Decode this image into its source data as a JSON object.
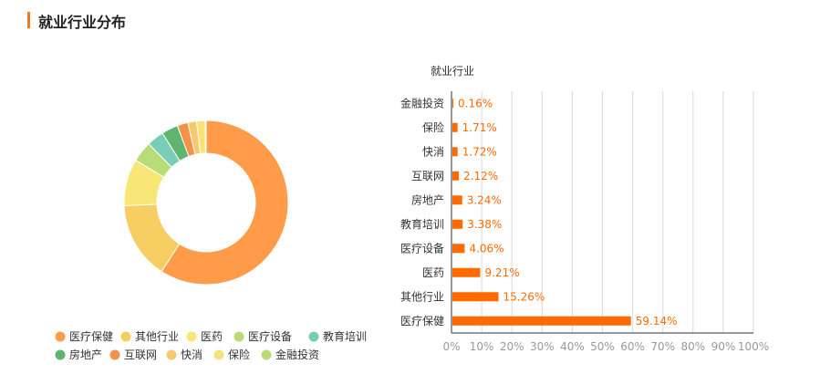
{
  "section": {
    "title": "就业行业分布"
  },
  "colors": {
    "accent": "#f07a1a",
    "bar": "#ff6a00",
    "pie": [
      "#ff9b49",
      "#f6ce62",
      "#f8e676",
      "#b9dc76",
      "#79cdb6",
      "#5fb46f",
      "#f39249",
      "#f6c86f",
      "#f7e37a",
      "#b9dc76"
    ]
  },
  "chart_data": [
    {
      "type": "pie",
      "donut": true,
      "legend_position": "bottom",
      "categories": [
        "医疗保健",
        "其他行业",
        "医药",
        "医疗设备",
        "教育培训",
        "房地产",
        "互联网",
        "快消",
        "保险",
        "金融投资"
      ],
      "values": [
        59.14,
        15.26,
        9.21,
        4.06,
        3.38,
        3.24,
        2.12,
        1.72,
        1.71,
        0.16
      ]
    },
    {
      "type": "bar",
      "orientation": "horizontal",
      "title": "就业行业",
      "categories": [
        "金融投资",
        "保险",
        "快消",
        "互联网",
        "房地产",
        "教育培训",
        "医疗设备",
        "医药",
        "其他行业",
        "医疗保健"
      ],
      "values": [
        0.16,
        1.71,
        1.72,
        2.12,
        3.24,
        3.38,
        4.06,
        9.21,
        15.26,
        59.14
      ],
      "value_labels": [
        "0.16%",
        "1.71%",
        "1.72%",
        "2.12%",
        "3.24%",
        "3.38%",
        "4.06%",
        "9.21%",
        "15.26%",
        "59.14%"
      ],
      "xlim": [
        0,
        100
      ],
      "x_ticks": [
        "0%",
        "10%",
        "20%",
        "30%",
        "40%",
        "50%",
        "60%",
        "70%",
        "80%",
        "90%",
        "100%"
      ],
      "grid": true
    }
  ]
}
